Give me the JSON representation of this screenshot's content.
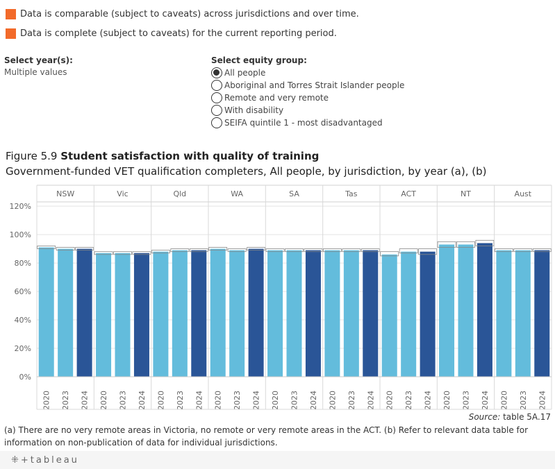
{
  "legend": [
    {
      "text": "Data is comparable (subject to caveats) across jurisdictions and over time.",
      "color": "#f26a2a"
    },
    {
      "text": "Data is complete (subject to caveats) for the current reporting period.",
      "color": "#f26a2a"
    }
  ],
  "filters": {
    "year_label": "Select year(s):",
    "year_value": "Multiple values",
    "equity_label": "Select equity group:",
    "equity_options": [
      {
        "label": "All people",
        "checked": true
      },
      {
        "label": "Aboriginal and Torres Strait Islander people",
        "checked": false
      },
      {
        "label": "Remote and very remote",
        "checked": false
      },
      {
        "label": "With disability",
        "checked": false
      },
      {
        "label": "SEIFA quintile 1 - most disadvantaged",
        "checked": false
      }
    ]
  },
  "figure": {
    "number": "Figure 5.9 ",
    "title": "Student satisfaction with quality of training",
    "subtitle": "Government-funded VET qualification completers, All people, by jurisdiction, by year (a), (b)"
  },
  "chart_data": {
    "type": "bar",
    "panels": [
      "NSW",
      "Vic",
      "Qld",
      "WA",
      "SA",
      "Tas",
      "ACT",
      "NT",
      "Aust"
    ],
    "years": [
      "2020",
      "2023",
      "2024"
    ],
    "yticks": [
      "0%",
      "20%",
      "40%",
      "60%",
      "80%",
      "100%",
      "120%"
    ],
    "ylim": [
      0,
      120
    ],
    "values": [
      [
        91,
        90,
        90
      ],
      [
        87,
        87,
        87
      ],
      [
        88,
        89,
        89
      ],
      [
        90,
        89,
        90
      ],
      [
        89,
        89,
        89
      ],
      [
        89,
        89,
        89
      ],
      [
        86,
        88,
        88
      ],
      [
        93,
        93,
        94
      ],
      [
        89,
        89,
        89
      ]
    ],
    "ci": [
      [
        [
          90,
          92
        ],
        [
          89,
          91
        ],
        [
          89,
          91
        ]
      ],
      [
        [
          86,
          88
        ],
        [
          86,
          88
        ],
        [
          86,
          88
        ]
      ],
      [
        [
          87,
          89
        ],
        [
          88,
          90
        ],
        [
          88,
          90
        ]
      ],
      [
        [
          89,
          91
        ],
        [
          88,
          90
        ],
        [
          89,
          91
        ]
      ],
      [
        [
          88,
          90
        ],
        [
          88,
          90
        ],
        [
          88,
          90
        ]
      ],
      [
        [
          88,
          90
        ],
        [
          88,
          90
        ],
        [
          88,
          90
        ]
      ],
      [
        [
          85,
          88
        ],
        [
          87,
          90
        ],
        [
          86,
          90
        ]
      ],
      [
        [
          91,
          95
        ],
        [
          91,
          95
        ],
        [
          92,
          96
        ]
      ],
      [
        [
          88,
          90
        ],
        [
          88,
          90
        ],
        [
          88,
          90
        ]
      ]
    ],
    "colors": {
      "2020": "#63bcdc",
      "2023": "#63bcdc",
      "2024": "#2a5597"
    },
    "grid": true
  },
  "source": {
    "label": "Source:",
    "text": " table 5A.17"
  },
  "footnote": "(a) There are no very remote areas in Victoria, no remote or very remote areas in the ACT. (b) Refer to relevant data table for information on non-publication of data for individual jurisdictions.",
  "footer": {
    "logo": "⁜+tableau"
  }
}
